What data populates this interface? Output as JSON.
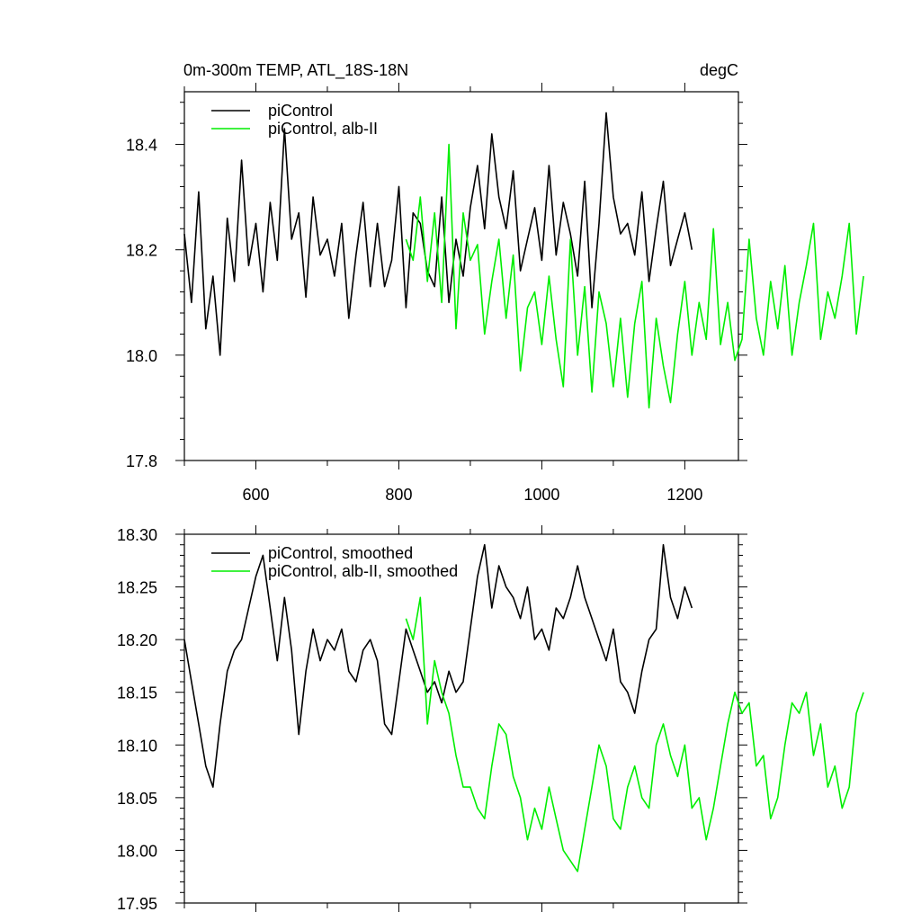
{
  "figure": {
    "title_left": "0m-300m TEMP, ATL_18S-18N",
    "title_right": "degC"
  },
  "chart_data": [
    {
      "type": "line",
      "title": "0m-300m TEMP, ATL_18S-18N",
      "units": "degC",
      "xlim": [
        500,
        1275
      ],
      "ylim": [
        17.8,
        18.5
      ],
      "x_ticks": [
        600,
        800,
        1000,
        1200
      ],
      "x_tick_labels": [
        "600",
        "800",
        "1000",
        "1200"
      ],
      "y_ticks": [
        17.8,
        18.0,
        18.2,
        18.4
      ],
      "y_tick_labels": [
        "17.8",
        "18.0",
        "18.2",
        "18.4"
      ],
      "legend_placement": "top-left",
      "series": [
        {
          "name": "piControl",
          "color": "#000000",
          "x_start": 500,
          "x_step": 10,
          "values": [
            18.23,
            18.1,
            18.31,
            18.05,
            18.15,
            18.0,
            18.26,
            18.14,
            18.37,
            18.17,
            18.25,
            18.12,
            18.29,
            18.18,
            18.43,
            18.22,
            18.27,
            18.11,
            18.3,
            18.19,
            18.22,
            18.15,
            18.25,
            18.07,
            18.19,
            18.29,
            18.13,
            18.25,
            18.13,
            18.18,
            18.32,
            18.09,
            18.27,
            18.25,
            18.16,
            18.13,
            18.3,
            18.1,
            18.22,
            18.15,
            18.28,
            18.36,
            18.24,
            18.42,
            18.3,
            18.24,
            18.35,
            18.16,
            18.22,
            18.28,
            18.18,
            18.36,
            18.19,
            18.29,
            18.23,
            18.15,
            18.33,
            18.09,
            18.25,
            18.46,
            18.3,
            18.23,
            18.25,
            18.19,
            18.31,
            18.14,
            18.24,
            18.33,
            18.17,
            18.22,
            18.27,
            18.2
          ]
        },
        {
          "name": "piControl, alb-II",
          "color": "#00ee00",
          "x_start": 810,
          "x_step": 10,
          "values": [
            18.22,
            18.18,
            18.3,
            18.14,
            18.27,
            18.1,
            18.4,
            18.05,
            18.27,
            18.18,
            18.21,
            18.04,
            18.14,
            18.22,
            18.07,
            18.19,
            17.97,
            18.09,
            18.12,
            18.02,
            18.15,
            18.03,
            17.94,
            18.22,
            18.0,
            18.13,
            17.93,
            18.12,
            18.06,
            17.94,
            18.07,
            17.92,
            18.06,
            18.14,
            17.9,
            18.07,
            17.98,
            17.91,
            18.04,
            18.14,
            18.0,
            18.1,
            18.03,
            18.24,
            18.02,
            18.1,
            17.99,
            18.03,
            18.22,
            18.07,
            18.0,
            18.14,
            18.05,
            18.17,
            18.0,
            18.1,
            18.17,
            18.25,
            18.03,
            18.12,
            18.07,
            18.15,
            18.25,
            18.04,
            18.15
          ]
        }
      ]
    },
    {
      "type": "line",
      "xlim": [
        500,
        1275
      ],
      "ylim": [
        17.95,
        18.3
      ],
      "x_ticks": [
        600,
        800,
        1000,
        1200
      ],
      "x_tick_labels": [],
      "y_ticks": [
        17.95,
        18.0,
        18.05,
        18.1,
        18.15,
        18.2,
        18.25,
        18.3
      ],
      "y_tick_labels": [
        "17.95",
        "18.00",
        "18.05",
        "18.10",
        "18.15",
        "18.20",
        "18.25",
        "18.30"
      ],
      "legend_placement": "top-left",
      "series": [
        {
          "name": "piControl, smoothed",
          "color": "#000000",
          "x_start": 500,
          "x_step": 10,
          "values": [
            18.2,
            18.16,
            18.12,
            18.08,
            18.06,
            18.12,
            18.17,
            18.19,
            18.2,
            18.23,
            18.26,
            18.28,
            18.23,
            18.18,
            18.24,
            18.19,
            18.11,
            18.17,
            18.21,
            18.18,
            18.2,
            18.19,
            18.21,
            18.17,
            18.16,
            18.19,
            18.2,
            18.18,
            18.12,
            18.11,
            18.16,
            18.21,
            18.19,
            18.17,
            18.15,
            18.16,
            18.14,
            18.17,
            18.15,
            18.16,
            18.21,
            18.26,
            18.29,
            18.23,
            18.27,
            18.25,
            18.24,
            18.22,
            18.25,
            18.2,
            18.21,
            18.19,
            18.23,
            18.22,
            18.24,
            18.27,
            18.24,
            18.22,
            18.2,
            18.18,
            18.21,
            18.16,
            18.15,
            18.13,
            18.17,
            18.2,
            18.21,
            18.29,
            18.24,
            18.22,
            18.25,
            18.23
          ]
        },
        {
          "name": "piControl, alb-II, smoothed",
          "color": "#00ee00",
          "x_start": 810,
          "x_step": 10,
          "values": [
            18.22,
            18.2,
            18.24,
            18.12,
            18.18,
            18.15,
            18.13,
            18.09,
            18.06,
            18.06,
            18.04,
            18.03,
            18.08,
            18.12,
            18.11,
            18.07,
            18.05,
            18.01,
            18.04,
            18.02,
            18.06,
            18.03,
            18.0,
            17.99,
            17.98,
            18.02,
            18.06,
            18.1,
            18.08,
            18.03,
            18.02,
            18.06,
            18.08,
            18.05,
            18.04,
            18.1,
            18.12,
            18.09,
            18.07,
            18.1,
            18.04,
            18.05,
            18.01,
            18.04,
            18.08,
            18.12,
            18.15,
            18.13,
            18.14,
            18.08,
            18.09,
            18.03,
            18.05,
            18.1,
            18.14,
            18.13,
            18.15,
            18.09,
            18.12,
            18.06,
            18.08,
            18.04,
            18.06,
            18.13,
            18.15
          ]
        }
      ]
    }
  ]
}
